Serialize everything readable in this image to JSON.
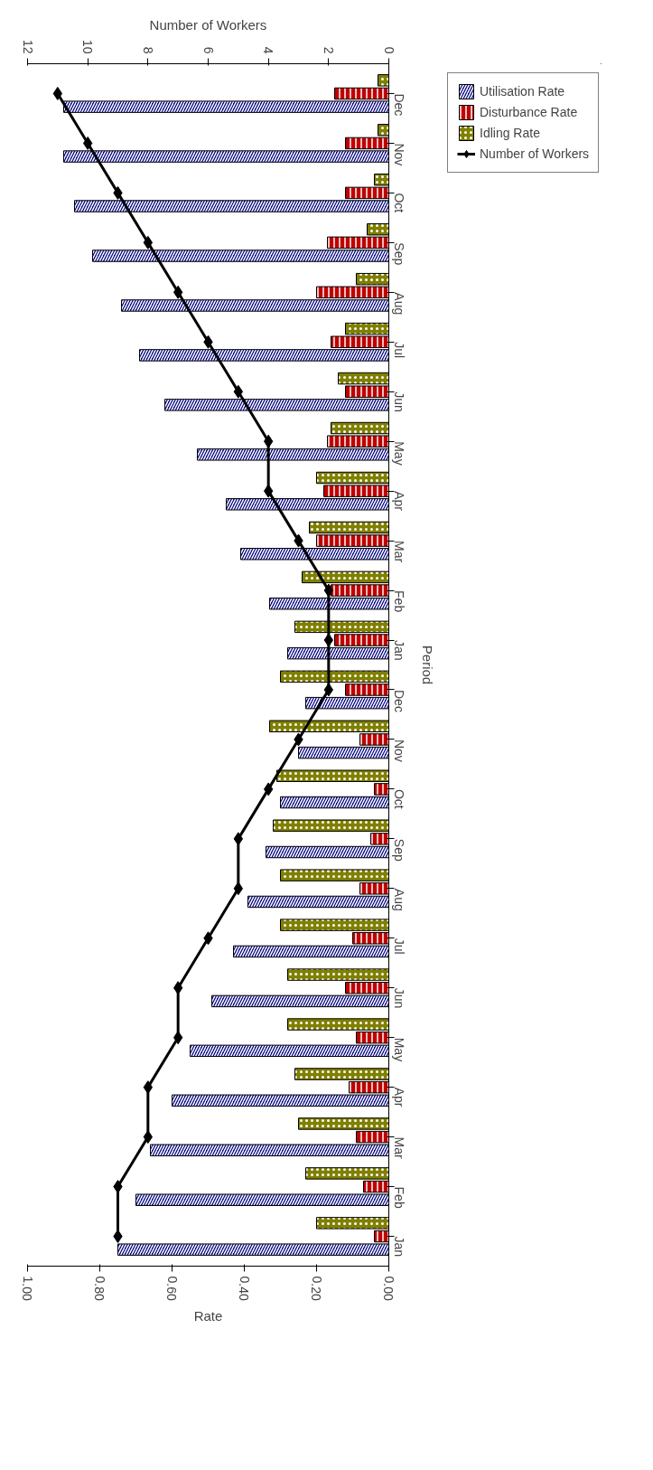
{
  "chart_data": {
    "type": "bar",
    "orientation": "horizontal",
    "xlabel": "Rate",
    "ylabel": "Period",
    "x2label": "Number of Workers",
    "categories": [
      "Dec",
      "Nov",
      "Oct",
      "Sep",
      "Aug",
      "Jul",
      "Jun",
      "May",
      "Apr",
      "Mar",
      "Feb",
      "Jan",
      "Dec",
      "Nov",
      "Oct",
      "Sep",
      "Aug",
      "Jul",
      "Jun",
      "May",
      "Apr",
      "Mar",
      "Feb",
      "Jan"
    ],
    "xlim": [
      1,
      0
    ],
    "xticks": [
      {
        "value": 0,
        "label": "0.00"
      },
      {
        "value": 0.2,
        "label": "0.20"
      },
      {
        "value": 0.4,
        "label": "0.40"
      },
      {
        "value": 0.6,
        "label": "0.60"
      },
      {
        "value": 0.8,
        "label": "0.80"
      },
      {
        "value": 1,
        "label": "1.00"
      }
    ],
    "x2lim": [
      12,
      0
    ],
    "x2ticks": [
      0,
      2,
      4,
      6,
      8,
      10,
      12
    ],
    "series": [
      {
        "name": "Utilisation Rate",
        "type": "bar",
        "color": "#000080",
        "values": [
          0.9,
          0.9,
          0.87,
          0.82,
          0.74,
          0.69,
          0.62,
          0.53,
          0.45,
          0.41,
          0.33,
          0.28,
          0.23,
          0.25,
          0.3,
          0.34,
          0.39,
          0.43,
          0.49,
          0.55,
          0.6,
          0.66,
          0.7,
          0.75
        ]
      },
      {
        "name": "Disturbance Rate",
        "type": "bar",
        "color": "#c00000",
        "values": [
          0.15,
          0.12,
          0.12,
          0.17,
          0.2,
          0.16,
          0.12,
          0.17,
          0.18,
          0.2,
          0.16,
          0.15,
          0.12,
          0.08,
          0.04,
          0.05,
          0.08,
          0.1,
          0.12,
          0.09,
          0.11,
          0.09,
          0.07,
          0.04
        ]
      },
      {
        "name": "Idling Rate",
        "type": "bar",
        "color": "#808000",
        "values": [
          0.03,
          0.03,
          0.04,
          0.06,
          0.09,
          0.12,
          0.14,
          0.16,
          0.2,
          0.22,
          0.24,
          0.26,
          0.3,
          0.33,
          0.31,
          0.32,
          0.3,
          0.3,
          0.28,
          0.28,
          0.26,
          0.25,
          0.23,
          0.2
        ]
      },
      {
        "name": "Number of Workers",
        "type": "line",
        "axis": "x2",
        "color": "#000000",
        "marker": "diamond",
        "values": [
          11,
          10,
          9,
          8,
          7,
          6,
          5,
          4,
          4,
          3,
          2,
          2,
          2,
          3,
          4,
          5,
          5,
          6,
          7,
          7,
          8,
          8,
          9,
          9
        ]
      }
    ],
    "grid": false,
    "legend": "right"
  }
}
